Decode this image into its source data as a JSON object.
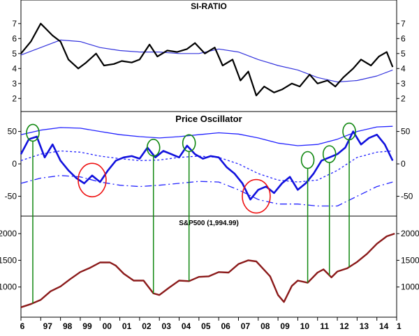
{
  "chart_data": [
    {
      "type": "line",
      "title": "SI-RATIO",
      "ylim": [
        1.5,
        8.2
      ],
      "yticks": [
        2,
        3,
        4,
        5,
        6,
        7
      ],
      "grid": false,
      "legend": "none",
      "colors": {
        "series": "#000000",
        "band": "#3333dd"
      },
      "series": [
        {
          "x": [
            1996.0,
            1996.5,
            1997.0,
            1997.3,
            1997.6,
            1998.0,
            1998.4,
            1998.9,
            1999.3,
            1999.8,
            2000.2,
            2000.7,
            2001.1,
            2001.6,
            2002.0,
            2002.5,
            2002.9,
            2003.4,
            2003.9,
            2004.4,
            2004.8,
            2005.3,
            2005.8,
            2006.2,
            2006.7,
            2007.1,
            2007.5,
            2007.9,
            2008.3,
            2008.8,
            2009.2,
            2009.7,
            2010.1,
            2010.6,
            2011.0,
            2011.5,
            2011.9,
            2012.3,
            2012.8,
            2013.2,
            2013.7,
            2014.1,
            2014.5,
            2014.8
          ],
          "values": [
            5.0,
            5.8,
            7.0,
            6.6,
            6.2,
            5.8,
            4.6,
            4.0,
            4.4,
            5.0,
            4.2,
            4.3,
            4.5,
            4.4,
            4.6,
            5.6,
            4.8,
            5.2,
            5.1,
            5.3,
            5.7,
            5.0,
            5.4,
            4.2,
            4.6,
            3.2,
            3.8,
            2.2,
            2.8,
            2.4,
            2.6,
            3.0,
            2.8,
            3.6,
            3.0,
            3.2,
            2.8,
            3.4,
            4.0,
            4.6,
            4.2,
            4.8,
            5.1,
            4.1
          ]
        },
        {
          "x": [
            1996.0,
            1997.0,
            1998.0,
            1999.0,
            2000.0,
            2001.0,
            2002.0,
            2003.0,
            2004.0,
            2005.0,
            2006.0,
            2007.0,
            2008.0,
            2009.0,
            2010.0,
            2011.0,
            2012.0,
            2013.0,
            2014.0,
            2014.8
          ],
          "values": [
            4.9,
            5.4,
            5.9,
            5.8,
            5.4,
            5.2,
            5.1,
            5.1,
            5.0,
            5.0,
            5.3,
            5.1,
            4.6,
            4.2,
            3.9,
            3.4,
            3.1,
            3.2,
            3.5,
            3.9
          ]
        }
      ]
    },
    {
      "type": "line",
      "title": "Price Oscillator",
      "ylim": [
        -72,
        70
      ],
      "yticks": [
        -50,
        0,
        50
      ],
      "grid": false,
      "legend": "none",
      "colors": {
        "series": "#1111dd",
        "band": "#2222ff",
        "circle": "#ee1111",
        "marker": "#118811"
      },
      "series": [
        {
          "x": [
            1996.0,
            1996.4,
            1996.8,
            1997.2,
            1997.6,
            1998.0,
            1998.4,
            1998.8,
            1999.2,
            1999.6,
            2000.0,
            2000.4,
            2000.8,
            2001.2,
            2001.6,
            2002.0,
            2002.4,
            2002.8,
            2003.2,
            2003.6,
            2004.0,
            2004.4,
            2004.8,
            2005.2,
            2005.6,
            2006.0,
            2006.4,
            2006.8,
            2007.2,
            2007.6,
            2008.0,
            2008.4,
            2008.8,
            2009.2,
            2009.6,
            2010.0,
            2010.4,
            2010.8,
            2011.2,
            2011.6,
            2012.0,
            2012.4,
            2012.8,
            2013.2,
            2013.6,
            2014.0,
            2014.4,
            2014.8
          ],
          "values": [
            15,
            38,
            42,
            10,
            30,
            5,
            -10,
            -22,
            -30,
            -18,
            -28,
            -10,
            5,
            10,
            12,
            8,
            25,
            10,
            20,
            15,
            10,
            28,
            15,
            8,
            12,
            10,
            -5,
            -15,
            -30,
            -55,
            -40,
            -35,
            -45,
            -30,
            -20,
            -40,
            -30,
            -15,
            5,
            10,
            15,
            25,
            50,
            30,
            40,
            45,
            30,
            5
          ]
        },
        {
          "x": [
            1996.0,
            1997.0,
            1998.0,
            1999.0,
            2000.0,
            2001.0,
            2002.0,
            2003.0,
            2004.0,
            2005.0,
            2006.0,
            2007.0,
            2008.0,
            2009.0,
            2010.0,
            2011.0,
            2012.0,
            2013.0,
            2014.0,
            2014.8
          ],
          "values": [
            45,
            52,
            56,
            55,
            50,
            45,
            42,
            40,
            42,
            45,
            48,
            46,
            40,
            32,
            28,
            30,
            38,
            50,
            57,
            58
          ]
        },
        {
          "x": [
            1996.0,
            1997.0,
            1998.0,
            1999.0,
            2000.0,
            2001.0,
            2002.0,
            2003.0,
            2004.0,
            2005.0,
            2006.0,
            2007.0,
            2008.0,
            2009.0,
            2010.0,
            2011.0,
            2012.0,
            2013.0,
            2014.0,
            2014.8
          ],
          "values": [
            5,
            15,
            20,
            18,
            12,
            8,
            5,
            6,
            10,
            12,
            10,
            0,
            -15,
            -25,
            -28,
            -25,
            -10,
            10,
            18,
            20
          ]
        },
        {
          "x": [
            1996.0,
            1997.0,
            1998.0,
            1999.0,
            2000.0,
            2001.0,
            2002.0,
            2003.0,
            2004.0,
            2005.0,
            2006.0,
            2007.0,
            2008.0,
            2009.0,
            2010.0,
            2011.0,
            2012.0,
            2013.0,
            2014.0,
            2014.8
          ],
          "values": [
            -30,
            -22,
            -18,
            -20,
            -28,
            -33,
            -35,
            -33,
            -30,
            -27,
            -28,
            -40,
            -55,
            -62,
            -62,
            -65,
            -65,
            -50,
            -35,
            -28
          ]
        }
      ],
      "circles": [
        {
          "x": 1996.6,
          "y": 48,
          "color": "green"
        },
        {
          "x": 1999.6,
          "y": -25,
          "color": "red"
        },
        {
          "x": 2002.7,
          "y": 25,
          "color": "green"
        },
        {
          "x": 2004.5,
          "y": 32,
          "color": "green"
        },
        {
          "x": 2007.9,
          "y": -50,
          "color": "red"
        },
        {
          "x": 2010.5,
          "y": 6,
          "color": "green"
        },
        {
          "x": 2011.6,
          "y": 15,
          "color": "green"
        },
        {
          "x": 2012.6,
          "y": 50,
          "color": "green"
        }
      ],
      "marker_lines_x": [
        1996.6,
        2002.7,
        2004.5,
        2010.5,
        2011.6,
        2012.6
      ]
    },
    {
      "type": "line",
      "title": "S&P500 (1,994.99)",
      "ylim": [
        500,
        2250
      ],
      "yticks": [
        1000,
        1500,
        2000
      ],
      "grid": false,
      "legend": "none",
      "colors": {
        "series": "#8b1a1a"
      },
      "series": [
        {
          "name": "S&P500 (1,994.99)",
          "x": [
            1996.0,
            1996.5,
            1997.0,
            1997.5,
            1998.0,
            1998.5,
            1999.0,
            1999.5,
            2000.0,
            2000.5,
            2000.8,
            2001.2,
            2001.7,
            2002.2,
            2002.7,
            2003.0,
            2003.5,
            2004.0,
            2004.5,
            2005.0,
            2005.5,
            2006.0,
            2006.5,
            2007.0,
            2007.5,
            2007.9,
            2008.3,
            2008.6,
            2009.0,
            2009.3,
            2009.7,
            2010.0,
            2010.5,
            2011.0,
            2011.3,
            2011.7,
            2012.0,
            2012.5,
            2013.0,
            2013.5,
            2014.0,
            2014.5,
            2014.9
          ],
          "values": [
            620,
            680,
            760,
            920,
            1010,
            1150,
            1280,
            1360,
            1460,
            1460,
            1400,
            1250,
            1120,
            1120,
            880,
            850,
            990,
            1120,
            1110,
            1190,
            1200,
            1280,
            1270,
            1430,
            1500,
            1480,
            1320,
            1200,
            850,
            720,
            1020,
            1120,
            1080,
            1270,
            1330,
            1180,
            1290,
            1350,
            1470,
            1620,
            1810,
            1950,
            2000
          ]
        }
      ]
    }
  ],
  "xaxis": {
    "labels": [
      "6",
      "97",
      "98",
      "99",
      "00",
      "01",
      "02",
      "03",
      "04",
      "05",
      "06",
      "07",
      "08",
      "09",
      "10",
      "11",
      "12",
      "13",
      "14",
      "1"
    ]
  }
}
